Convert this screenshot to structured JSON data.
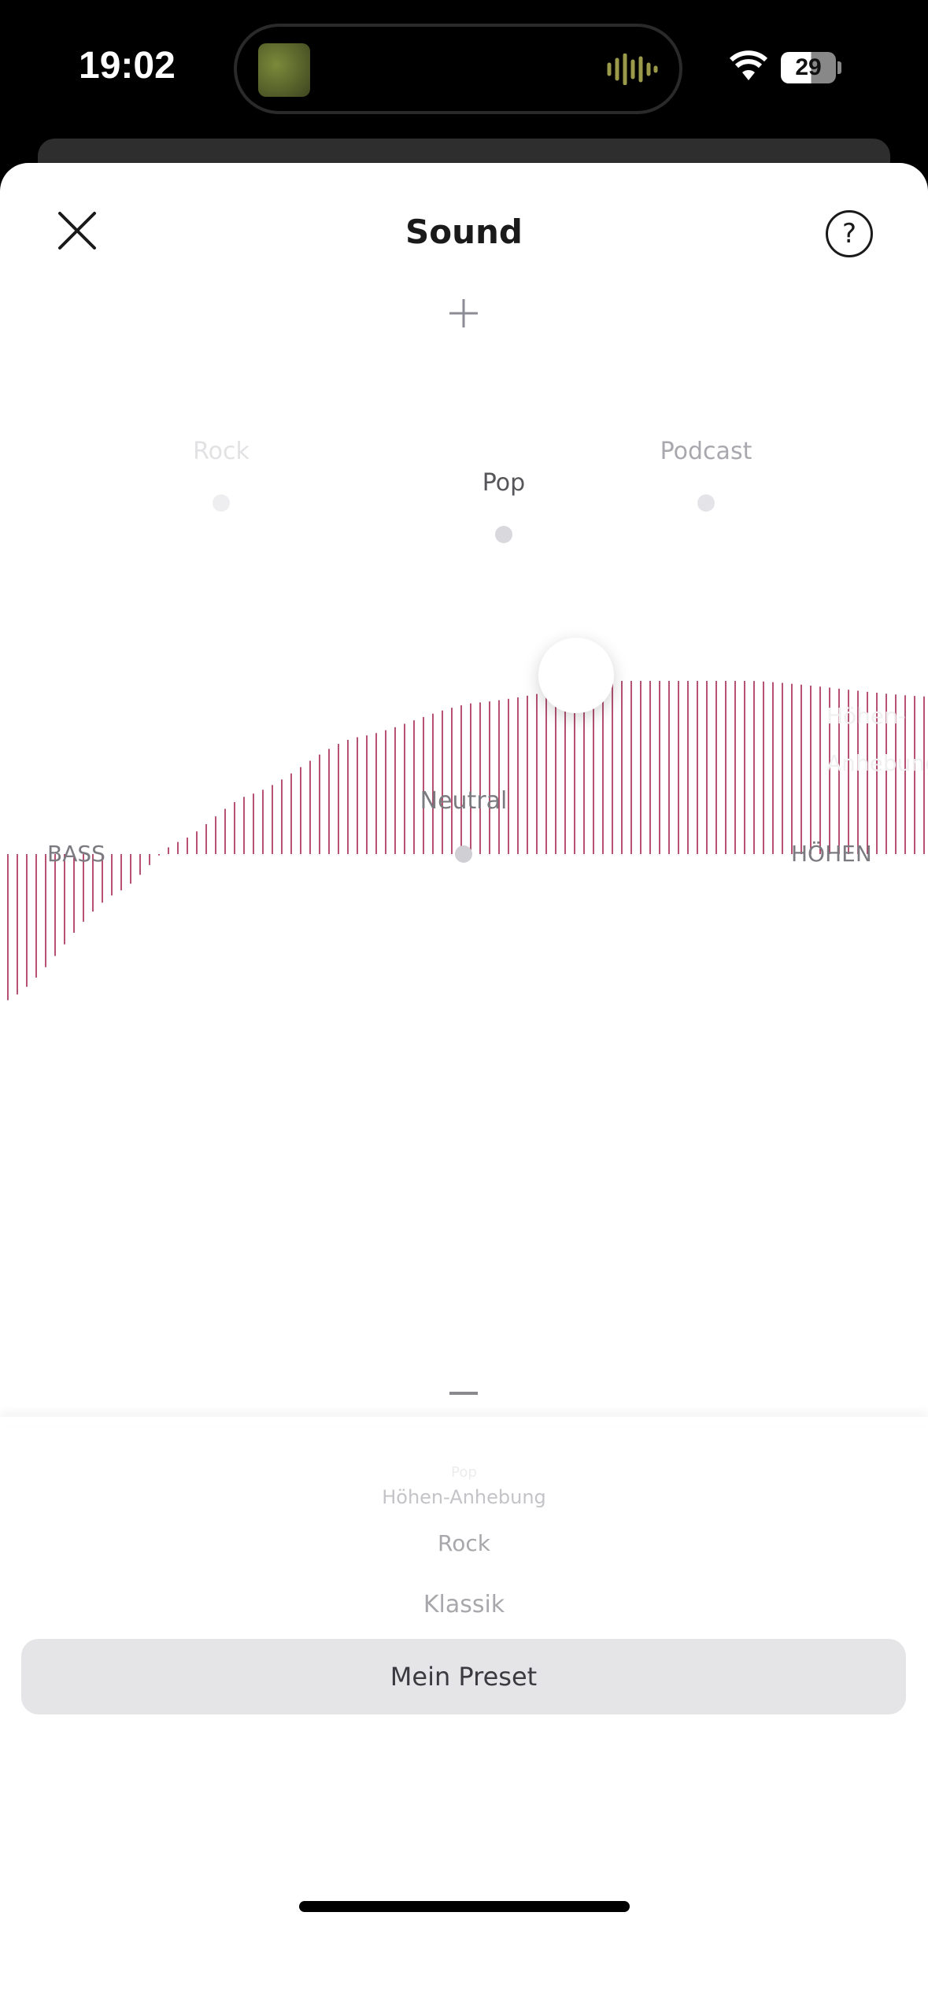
{
  "status_bar": {
    "time": "19:02",
    "battery": "29",
    "audio_wave_color": "#9a9a4a"
  },
  "header": {
    "title": "Sound",
    "close_icon": "close-icon",
    "help_label": "?"
  },
  "controls": {
    "increase_icon": "plus-icon",
    "decrease_icon": "minus-icon"
  },
  "presets_map": {
    "rock": "Rock",
    "pop": "Pop",
    "podcast": "Podcast",
    "neutral": "Neutral",
    "treble_boost": "Höhen-Anhebung"
  },
  "eq": {
    "bass_label": "BASS",
    "treble_label": "HÖHEN",
    "bar_color": "#a3264f"
  },
  "picker": {
    "items": [
      "Pop",
      "Höhen-Anhebung",
      "Rock",
      "Klassik"
    ],
    "selected": "Mein Preset"
  }
}
